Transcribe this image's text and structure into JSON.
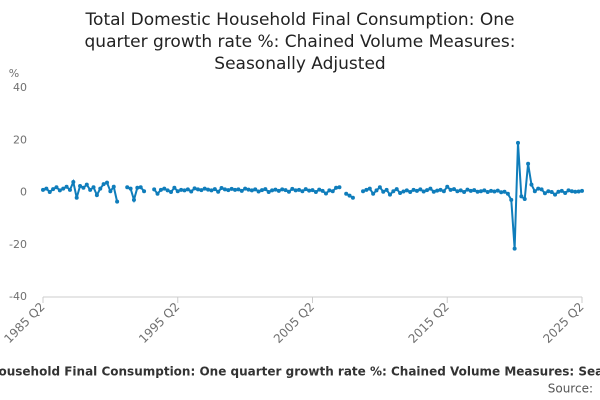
{
  "chart_data": {
    "type": "line",
    "title": "Total Domestic Household Final Consumption: One quarter growth rate %: Chained Volume Measures: Seasonally Adjusted",
    "y_label": "%",
    "source_label": "Source:",
    "categories": [
      "1985 Q2",
      null,
      null,
      null,
      null,
      null,
      null,
      null,
      null,
      null,
      null,
      null,
      null,
      null,
      null,
      null,
      null,
      null,
      null,
      null,
      null,
      null,
      null,
      null,
      null,
      null,
      null,
      null,
      null,
      null,
      null,
      null,
      null,
      null,
      null,
      null,
      null,
      null,
      null,
      null,
      "1995 Q2",
      null,
      null,
      null,
      null,
      null,
      null,
      null,
      null,
      null,
      null,
      null,
      null,
      null,
      null,
      null,
      null,
      null,
      null,
      null,
      null,
      null,
      null,
      null,
      null,
      null,
      null,
      null,
      null,
      null,
      null,
      null,
      null,
      null,
      null,
      null,
      null,
      null,
      null,
      null,
      "2005 Q2",
      null,
      null,
      null,
      null,
      null,
      null,
      null,
      null,
      null,
      null,
      null,
      null,
      null,
      null,
      null,
      null,
      null,
      null,
      null,
      null,
      null,
      null,
      null,
      null,
      null,
      null,
      null,
      null,
      null,
      null,
      null,
      null,
      null,
      null,
      null,
      null,
      null,
      null,
      null,
      "2015 Q2",
      null,
      null,
      null,
      null,
      null,
      null,
      null,
      null,
      null,
      null,
      null,
      null,
      null,
      null,
      null,
      null,
      null,
      null,
      null,
      null,
      null,
      null,
      null,
      null,
      null,
      null,
      null,
      null,
      null,
      null,
      null,
      null,
      null,
      null,
      null,
      null,
      null,
      null,
      null,
      "2025 Q2"
    ],
    "series": [
      {
        "name": "Total Domestic Household Final Consumption: One quarter growth rate %: Chained Volume Measures: Seasonally Adjusted",
        "color": "#0f7dbb",
        "values": [
          1,
          1.5,
          0.2,
          1.3,
          2,
          0.8,
          1.5,
          2.2,
          1,
          4,
          -2,
          2.5,
          1.8,
          3,
          1,
          2,
          -1,
          1.5,
          3.2,
          3.8,
          0.5,
          2.2,
          -3.5,
          null,
          null,
          2,
          1.5,
          -2.8,
          1.8,
          2,
          0.5,
          null,
          null,
          1.2,
          -0.5,
          1,
          1.5,
          0.8,
          0.2,
          1.8,
          0.5,
          1,
          0.8,
          1.2,
          0.4,
          1.6,
          1.2,
          0.9,
          1.5,
          1.1,
          0.8,
          1.3,
          0.3,
          1.7,
          1.2,
          0.9,
          1.4,
          1,
          1.2,
          0.6,
          1.5,
          1.1,
          0.8,
          1.2,
          0.4,
          0.9,
          1.3,
          0.2,
          0.8,
          1.1,
          0.6,
          1.2,
          0.9,
          0.3,
          1.4,
          0.8,
          1,
          0.5,
          1.3,
          0.7,
          0.9,
          0.2,
          1.1,
          0.6,
          -0.4,
          0.8,
          0.5,
          1.8,
          2,
          null,
          -0.5,
          -1.2,
          -2,
          null,
          null,
          0.5,
          1,
          1.5,
          -0.5,
          0.8,
          2,
          0.3,
          1,
          -0.8,
          0.5,
          1.3,
          -0.2,
          0.4,
          0.8,
          0.2,
          1,
          0.6,
          1.2,
          0.4,
          0.9,
          1.5,
          0.3,
          0.7,
          1,
          0.5,
          2.2,
          1,
          1.3,
          0.5,
          0.8,
          0.2,
          1.1,
          0.6,
          0.9,
          0.3,
          0.5,
          0.8,
          0.2,
          0.6,
          0.4,
          0.7,
          0.1,
          0.3,
          -0.5,
          -2.8,
          -21.5,
          19,
          -1.5,
          -2.5,
          11,
          3,
          0.5,
          1.5,
          1.2,
          -0.3,
          0.5,
          0.2,
          -0.8,
          0.3,
          0.6,
          -0.2,
          0.8,
          0.5,
          0.3,
          0.4,
          0.6
        ]
      }
    ],
    "ylim": [
      -40,
      40
    ],
    "yticks": [
      -40,
      -20,
      0,
      20,
      40
    ],
    "grid": false
  }
}
